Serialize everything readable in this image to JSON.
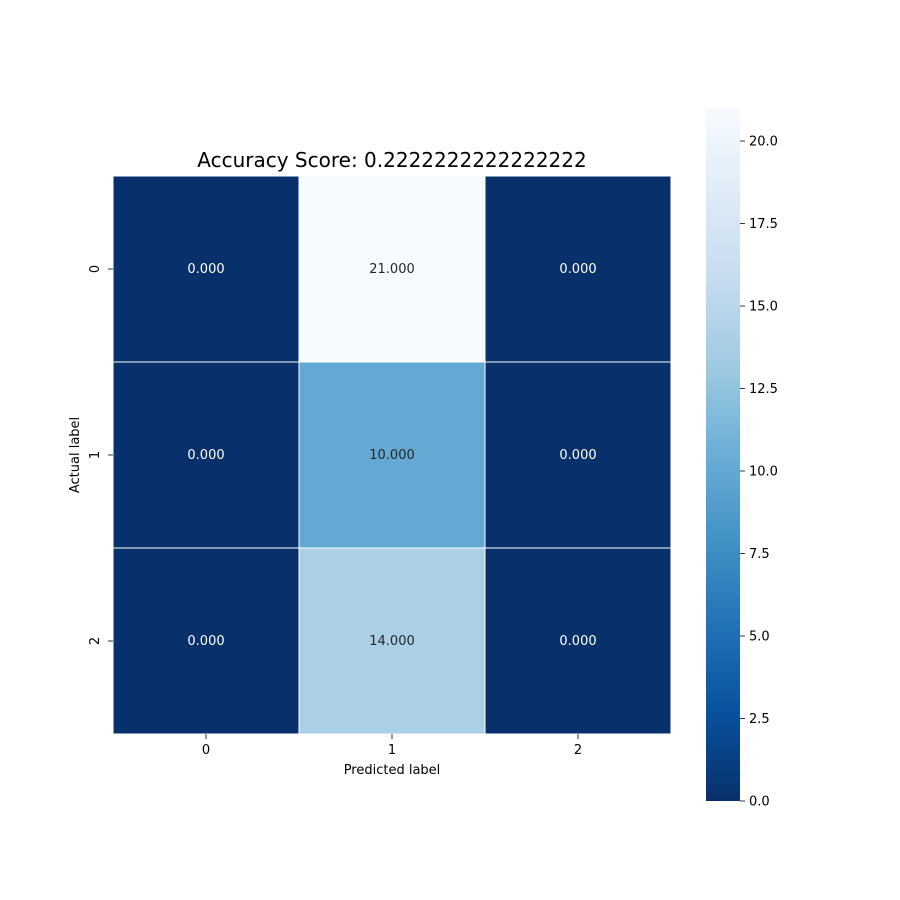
{
  "chart_data": {
    "type": "heatmap",
    "title": "Accuracy Score: 0.2222222222222222",
    "xlabel": "Predicted label",
    "ylabel": "Actual label",
    "x_categories": [
      "0",
      "1",
      "2"
    ],
    "y_categories": [
      "0",
      "1",
      "2"
    ],
    "values": [
      [
        0,
        21,
        0
      ],
      [
        0,
        10,
        0
      ],
      [
        0,
        14,
        0
      ]
    ],
    "cell_labels": [
      [
        "0.000",
        "21.000",
        "0.000"
      ],
      [
        "0.000",
        "10.000",
        "0.000"
      ],
      [
        "0.000",
        "14.000",
        "0.000"
      ]
    ],
    "colormap": "Blues_r",
    "color_range": [
      0,
      21
    ],
    "colorbar_ticks": [
      0.0,
      2.5,
      5.0,
      7.5,
      10.0,
      12.5,
      15.0,
      17.5,
      20.0
    ],
    "colorbar_tick_labels": [
      "0.0",
      "2.5",
      "5.0",
      "7.5",
      "10.0",
      "12.5",
      "15.0",
      "17.5",
      "20.0"
    ],
    "colorbar_position": "right",
    "grid_line_color": "#ffffff"
  }
}
